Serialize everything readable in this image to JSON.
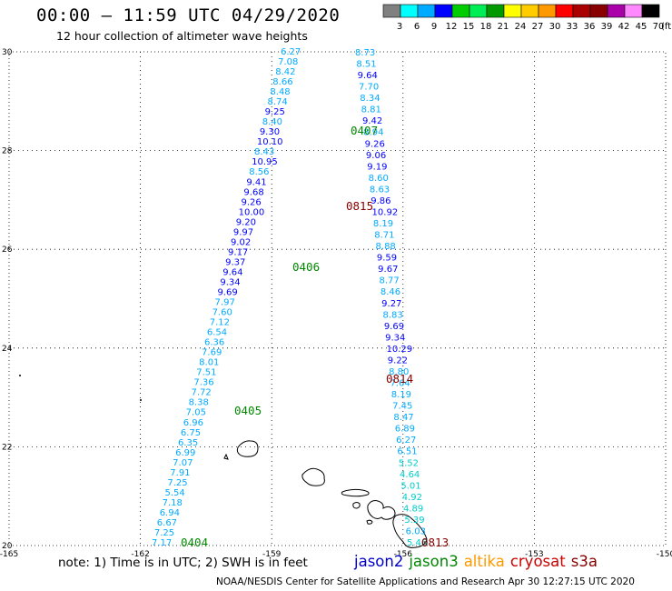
{
  "title": "00:00 – 11:59 UTC 04/29/2020",
  "subtitle": "12 hour collection of altimeter wave heights",
  "colorbar": {
    "unit": "(ft)",
    "colors": [
      "#808080",
      "#00ffff",
      "#00aaff",
      "#0000ff",
      "#00cc00",
      "#00ee55",
      "#009900",
      "#ffff00",
      "#ffcc00",
      "#ff9900",
      "#ff0000",
      "#aa0000",
      "#880000",
      "#aa00aa",
      "#ff88ff",
      "#000000"
    ],
    "labels": [
      "3",
      "6",
      "9",
      "12",
      "15",
      "18",
      "21",
      "24",
      "27",
      "30",
      "33",
      "36",
      "39",
      "42",
      "45",
      "70"
    ]
  },
  "axes": {
    "lon_ticks": [
      "-165",
      "-162",
      "-159",
      "-156",
      "-153",
      "-150"
    ],
    "lat_ticks": [
      "30",
      "28",
      "26",
      "24",
      "22",
      "20"
    ]
  },
  "passes": [
    {
      "id": "0404",
      "color": "#008800"
    },
    {
      "id": "0405",
      "color": "#008800"
    },
    {
      "id": "0406",
      "color": "#008800"
    },
    {
      "id": "0407",
      "color": "#008800"
    },
    {
      "id": "0813",
      "color": "#880000"
    },
    {
      "id": "0814",
      "color": "#880000"
    },
    {
      "id": "0815",
      "color": "#880000"
    }
  ],
  "tracks": [
    {
      "name": "jason3 pass 0404/0405/0406",
      "satellite": "jason3",
      "values": [
        {
          "v": "6.27",
          "c": "#00aaff"
        },
        {
          "v": "7.08",
          "c": "#00aaff"
        },
        {
          "v": "8.42",
          "c": "#00aaff"
        },
        {
          "v": "8.66",
          "c": "#00aaff"
        },
        {
          "v": "8.48",
          "c": "#00aaff"
        },
        {
          "v": "8.74",
          "c": "#00aaff"
        },
        {
          "v": "9.25",
          "c": "#0000ff"
        },
        {
          "v": "8.40",
          "c": "#00aaff"
        },
        {
          "v": "9.30",
          "c": "#0000ff"
        },
        {
          "v": "10.10",
          "c": "#0000ff"
        },
        {
          "v": "8.43",
          "c": "#00aaff"
        },
        {
          "v": "10.95",
          "c": "#0000ff"
        },
        {
          "v": "8.56",
          "c": "#00aaff"
        },
        {
          "v": "9.41",
          "c": "#0000ff"
        },
        {
          "v": "9.68",
          "c": "#0000ff"
        },
        {
          "v": "9.26",
          "c": "#0000ff"
        },
        {
          "v": "10.00",
          "c": "#0000ff"
        },
        {
          "v": "9.20",
          "c": "#0000ff"
        },
        {
          "v": "9.97",
          "c": "#0000ff"
        },
        {
          "v": "9.02",
          "c": "#0000ff"
        },
        {
          "v": "9.17",
          "c": "#0000ff"
        },
        {
          "v": "9.37",
          "c": "#0000ff"
        },
        {
          "v": "9.64",
          "c": "#0000ff"
        },
        {
          "v": "9.34",
          "c": "#0000ff"
        },
        {
          "v": "9.69",
          "c": "#0000ff"
        },
        {
          "v": "7.97",
          "c": "#00aaff"
        },
        {
          "v": "7.60",
          "c": "#00aaff"
        },
        {
          "v": "7.12",
          "c": "#00aaff"
        },
        {
          "v": "6.54",
          "c": "#00aaff"
        },
        {
          "v": "6.36",
          "c": "#00aaff"
        },
        {
          "v": "7.69",
          "c": "#00aaff"
        },
        {
          "v": "8.01",
          "c": "#00aaff"
        },
        {
          "v": "7.51",
          "c": "#00aaff"
        },
        {
          "v": "7.36",
          "c": "#00aaff"
        },
        {
          "v": "7.72",
          "c": "#00aaff"
        },
        {
          "v": "8.38",
          "c": "#00aaff"
        },
        {
          "v": "7.05",
          "c": "#00aaff"
        },
        {
          "v": "6.96",
          "c": "#00aaff"
        },
        {
          "v": "6.75",
          "c": "#00aaff"
        },
        {
          "v": "6.35",
          "c": "#00aaff"
        },
        {
          "v": "6.99",
          "c": "#00aaff"
        },
        {
          "v": "7.07",
          "c": "#00aaff"
        },
        {
          "v": "7.91",
          "c": "#00aaff"
        },
        {
          "v": "7.25",
          "c": "#00aaff"
        },
        {
          "v": "5.54",
          "c": "#00aaff"
        },
        {
          "v": "7.18",
          "c": "#00aaff"
        },
        {
          "v": "6.94",
          "c": "#00aaff"
        },
        {
          "v": "6.67",
          "c": "#00aaff"
        },
        {
          "v": "7.25",
          "c": "#00aaff"
        },
        {
          "v": "7.17",
          "c": "#00aaff"
        }
      ]
    },
    {
      "name": "jason3 pass 0407/0813/0814/0815",
      "satellite": "jason3",
      "values": [
        {
          "v": "8.73",
          "c": "#00aaff"
        },
        {
          "v": "8.51",
          "c": "#00aaff"
        },
        {
          "v": "9.64",
          "c": "#0000ff"
        },
        {
          "v": "7.70",
          "c": "#00aaff"
        },
        {
          "v": "8.34",
          "c": "#00aaff"
        },
        {
          "v": "8.81",
          "c": "#00aaff"
        },
        {
          "v": "9.42",
          "c": "#0000ff"
        },
        {
          "v": "8.94",
          "c": "#00aaff"
        },
        {
          "v": "9.26",
          "c": "#0000ff"
        },
        {
          "v": "9.06",
          "c": "#0000ff"
        },
        {
          "v": "9.19",
          "c": "#0000ff"
        },
        {
          "v": "8.60",
          "c": "#00aaff"
        },
        {
          "v": "8.63",
          "c": "#00aaff"
        },
        {
          "v": "9.86",
          "c": "#0000ff"
        },
        {
          "v": "10.92",
          "c": "#0000ff"
        },
        {
          "v": "8.19",
          "c": "#00aaff"
        },
        {
          "v": "8.71",
          "c": "#00aaff"
        },
        {
          "v": "8.88",
          "c": "#00aaff"
        },
        {
          "v": "9.59",
          "c": "#0000ff"
        },
        {
          "v": "9.67",
          "c": "#0000ff"
        },
        {
          "v": "8.77",
          "c": "#00aaff"
        },
        {
          "v": "8.46",
          "c": "#00aaff"
        },
        {
          "v": "9.27",
          "c": "#0000ff"
        },
        {
          "v": "8.83",
          "c": "#00aaff"
        },
        {
          "v": "9.69",
          "c": "#0000ff"
        },
        {
          "v": "9.34",
          "c": "#0000ff"
        },
        {
          "v": "10.29",
          "c": "#0000ff"
        },
        {
          "v": "9.22",
          "c": "#0000ff"
        },
        {
          "v": "8.80",
          "c": "#00aaff"
        },
        {
          "v": "7.64",
          "c": "#00aaff"
        },
        {
          "v": "8.19",
          "c": "#00aaff"
        },
        {
          "v": "7.45",
          "c": "#00aaff"
        },
        {
          "v": "8.47",
          "c": "#00aaff"
        },
        {
          "v": "6.89",
          "c": "#00aaff"
        },
        {
          "v": "6.27",
          "c": "#00aaff"
        },
        {
          "v": "6.51",
          "c": "#00aaff"
        },
        {
          "v": "5.52",
          "c": "#00cccc"
        },
        {
          "v": "4.64",
          "c": "#00cccc"
        },
        {
          "v": "5.01",
          "c": "#00cccc"
        },
        {
          "v": "4.92",
          "c": "#00cccc"
        },
        {
          "v": "4.89",
          "c": "#00cccc"
        },
        {
          "v": "5.39",
          "c": "#00cccc"
        },
        {
          "v": "6.03",
          "c": "#00aaff"
        },
        {
          "v": "5.46",
          "c": "#00cccc"
        }
      ]
    }
  ],
  "note": "note: 1) Time is in UTC;  2) SWH is in feet",
  "legend": [
    {
      "label": "jason2",
      "color": "#0000cc"
    },
    {
      "label": "jason3",
      "color": "#008800"
    },
    {
      "label": "altika",
      "color": "#ff9900"
    },
    {
      "label": "cryosat",
      "color": "#cc0000"
    },
    {
      "label": "s3a",
      "color": "#880000"
    }
  ],
  "credit": "NOAA/NESDIS Center for Satellite Applications and Research     Apr 30 12:27:15 UTC 2020"
}
